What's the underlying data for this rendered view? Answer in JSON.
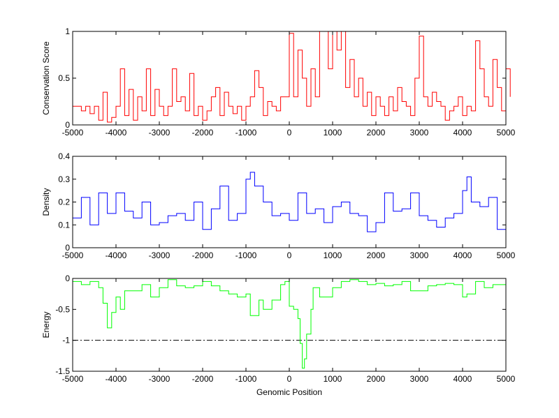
{
  "chart_data": [
    {
      "type": "line",
      "ylabel": "Conservation Score",
      "xlabel": "",
      "xlim": [
        -5000,
        5000
      ],
      "ylim": [
        0,
        1
      ],
      "xticks": [
        -5000,
        -4000,
        -3000,
        -2000,
        -1000,
        0,
        1000,
        2000,
        3000,
        4000,
        5000
      ],
      "yticks": [
        0,
        0.5,
        1
      ],
      "color": "#ff0000",
      "x_start": -5000,
      "x_step": 100,
      "values": [
        0.2,
        0.2,
        0.15,
        0.2,
        0.12,
        0.2,
        0.05,
        0.35,
        0.03,
        0.08,
        0.2,
        0.6,
        0.1,
        0.38,
        0.05,
        0.3,
        0.15,
        0.6,
        0.1,
        0.38,
        0.2,
        0.1,
        0.2,
        0.6,
        0.25,
        0.3,
        0.15,
        0.55,
        0.1,
        0.2,
        0.05,
        0.15,
        0.3,
        0.4,
        0.1,
        0.35,
        0.2,
        0.12,
        0.2,
        0.05,
        0.2,
        0.3,
        0.58,
        0.4,
        0.1,
        0.25,
        0.2,
        0.15,
        0.3,
        0.3,
        0.98,
        0.3,
        0.8,
        0.5,
        0.2,
        0.6,
        0.3,
        1.0,
        1.0,
        0.6,
        1.0,
        0.8,
        1.0,
        0.4,
        0.7,
        0.3,
        0.5,
        0.2,
        0.35,
        0.1,
        0.3,
        0.2,
        0.1,
        0.3,
        0.15,
        0.4,
        0.25,
        0.2,
        0.1,
        0.5,
        0.95,
        0.3,
        0.2,
        0.35,
        0.25,
        0.2,
        0.05,
        0.15,
        0.2,
        0.3,
        0.1,
        0.2,
        0.15,
        0.9,
        0.6,
        0.3,
        0.2,
        0.7,
        0.4,
        0.15,
        0.6,
        0.3
      ]
    },
    {
      "type": "line",
      "ylabel": "Density",
      "xlabel": "",
      "xlim": [
        -5000,
        5000
      ],
      "ylim": [
        0,
        0.4
      ],
      "xticks": [
        -5000,
        -4000,
        -3000,
        -2000,
        -1000,
        0,
        1000,
        2000,
        3000,
        4000,
        5000
      ],
      "yticks": [
        0,
        0.1,
        0.2,
        0.3,
        0.4
      ],
      "color": "#0000ff",
      "points": [
        [
          -5000,
          0.13
        ],
        [
          -4800,
          0.22
        ],
        [
          -4600,
          0.1
        ],
        [
          -4400,
          0.24
        ],
        [
          -4200,
          0.15
        ],
        [
          -4000,
          0.24
        ],
        [
          -3800,
          0.16
        ],
        [
          -3600,
          0.13
        ],
        [
          -3400,
          0.2
        ],
        [
          -3200,
          0.1
        ],
        [
          -3000,
          0.11
        ],
        [
          -2800,
          0.14
        ],
        [
          -2600,
          0.15
        ],
        [
          -2400,
          0.12
        ],
        [
          -2200,
          0.2
        ],
        [
          -2000,
          0.08
        ],
        [
          -1800,
          0.17
        ],
        [
          -1600,
          0.27
        ],
        [
          -1400,
          0.12
        ],
        [
          -1200,
          0.15
        ],
        [
          -1000,
          0.3
        ],
        [
          -900,
          0.33
        ],
        [
          -800,
          0.27
        ],
        [
          -600,
          0.2
        ],
        [
          -400,
          0.14
        ],
        [
          -200,
          0.15
        ],
        [
          0,
          0.12
        ],
        [
          200,
          0.24
        ],
        [
          400,
          0.15
        ],
        [
          600,
          0.17
        ],
        [
          800,
          0.11
        ],
        [
          1000,
          0.18
        ],
        [
          1200,
          0.2
        ],
        [
          1400,
          0.15
        ],
        [
          1600,
          0.14
        ],
        [
          1800,
          0.07
        ],
        [
          2000,
          0.11
        ],
        [
          2200,
          0.24
        ],
        [
          2400,
          0.16
        ],
        [
          2600,
          0.17
        ],
        [
          2800,
          0.24
        ],
        [
          3000,
          0.14
        ],
        [
          3200,
          0.12
        ],
        [
          3400,
          0.09
        ],
        [
          3600,
          0.13
        ],
        [
          3800,
          0.15
        ],
        [
          4000,
          0.25
        ],
        [
          4100,
          0.31
        ],
        [
          4200,
          0.2
        ],
        [
          4400,
          0.18
        ],
        [
          4600,
          0.22
        ],
        [
          4800,
          0.08
        ],
        [
          5000,
          0.14
        ]
      ]
    },
    {
      "type": "line",
      "ylabel": "Energy",
      "xlabel": "Genomic Position",
      "xlim": [
        -5000,
        5000
      ],
      "ylim": [
        -1.5,
        0
      ],
      "xticks": [
        -5000,
        -4000,
        -3000,
        -2000,
        -1000,
        0,
        1000,
        2000,
        3000,
        4000,
        5000
      ],
      "yticks": [
        -1.5,
        -1,
        -0.5,
        0
      ],
      "color": "#00ff00",
      "threshold": -1,
      "points": [
        [
          -5000,
          -0.05
        ],
        [
          -4800,
          -0.1
        ],
        [
          -4600,
          -0.05
        ],
        [
          -4400,
          -0.15
        ],
        [
          -4300,
          -0.4
        ],
        [
          -4200,
          -0.8
        ],
        [
          -4100,
          -0.55
        ],
        [
          -4000,
          -0.3
        ],
        [
          -3900,
          -0.5
        ],
        [
          -3800,
          -0.2
        ],
        [
          -3600,
          -0.2
        ],
        [
          -3400,
          -0.1
        ],
        [
          -3200,
          -0.3
        ],
        [
          -3000,
          -0.15
        ],
        [
          -2800,
          -0.02
        ],
        [
          -2600,
          -0.12
        ],
        [
          -2400,
          -0.15
        ],
        [
          -2200,
          -0.12
        ],
        [
          -2000,
          -0.05
        ],
        [
          -1800,
          -0.12
        ],
        [
          -1600,
          -0.2
        ],
        [
          -1400,
          -0.25
        ],
        [
          -1200,
          -0.3
        ],
        [
          -1000,
          -0.25
        ],
        [
          -900,
          -0.6
        ],
        [
          -800,
          -0.6
        ],
        [
          -700,
          -0.35
        ],
        [
          -600,
          -0.5
        ],
        [
          -400,
          -0.35
        ],
        [
          -200,
          -0.1
        ],
        [
          -100,
          -0.05
        ],
        [
          0,
          -0.45
        ],
        [
          100,
          -0.5
        ],
        [
          200,
          -0.65
        ],
        [
          250,
          -1.05
        ],
        [
          300,
          -1.45
        ],
        [
          350,
          -1.3
        ],
        [
          400,
          -0.9
        ],
        [
          500,
          -0.5
        ],
        [
          550,
          -0.15
        ],
        [
          700,
          -0.3
        ],
        [
          900,
          -0.3
        ],
        [
          1000,
          -0.15
        ],
        [
          1200,
          -0.05
        ],
        [
          1400,
          -0.02
        ],
        [
          1600,
          -0.05
        ],
        [
          1800,
          -0.1
        ],
        [
          2000,
          -0.08
        ],
        [
          2200,
          -0.12
        ],
        [
          2400,
          -0.1
        ],
        [
          2600,
          -0.05
        ],
        [
          2800,
          -0.2
        ],
        [
          3000,
          -0.2
        ],
        [
          3200,
          -0.12
        ],
        [
          3400,
          -0.1
        ],
        [
          3600,
          -0.08
        ],
        [
          3800,
          -0.1
        ],
        [
          4000,
          -0.3
        ],
        [
          4100,
          -0.25
        ],
        [
          4300,
          -0.05
        ],
        [
          4500,
          -0.15
        ],
        [
          4700,
          -0.1
        ],
        [
          5000,
          -0.1
        ]
      ]
    }
  ]
}
